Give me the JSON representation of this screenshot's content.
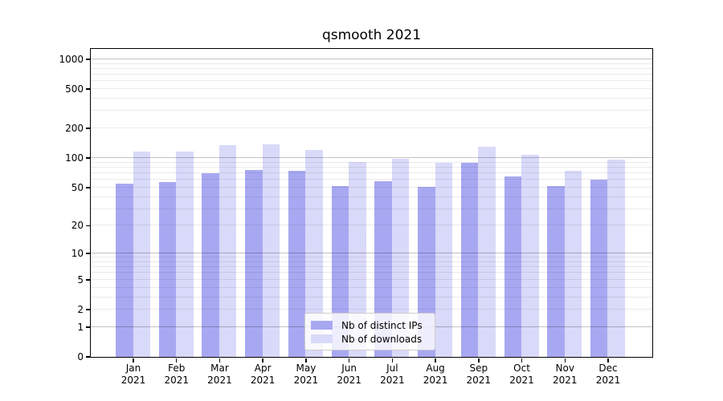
{
  "chart_data": {
    "type": "bar",
    "title": "qsmooth 2021",
    "categories": [
      "Jan 2021",
      "Feb 2021",
      "Mar 2021",
      "Apr 2021",
      "May 2021",
      "Jun 2021",
      "Jul 2021",
      "Aug 2021",
      "Sep 2021",
      "Oct 2021",
      "Nov 2021",
      "Dec 2021"
    ],
    "series": [
      {
        "name": "Nb of distinct IPs",
        "color": "#a8a8f2",
        "values": [
          54,
          56,
          69,
          75,
          74,
          51,
          57,
          50,
          89,
          65,
          51,
          60
        ]
      },
      {
        "name": "Nb of downloads",
        "color": "#d9d9f9",
        "values": [
          116,
          116,
          135,
          136,
          120,
          91,
          98,
          89,
          130,
          107,
          73,
          96
        ]
      }
    ],
    "xlabel": "",
    "ylabel": "",
    "y_scale": "log1p",
    "ylim": [
      0,
      1273
    ],
    "y_ticks": [
      0,
      1,
      2,
      5,
      10,
      20,
      50,
      100,
      200,
      500,
      1000
    ],
    "major_gridlines": [
      1,
      10,
      100,
      1000
    ],
    "minor_gridlines": [
      2,
      3,
      4,
      5,
      6,
      7,
      8,
      9,
      20,
      30,
      40,
      50,
      60,
      70,
      80,
      90,
      200,
      300,
      400,
      500,
      600,
      700,
      800,
      900
    ],
    "grid": true,
    "legend_position": "lower center",
    "colors": {
      "axis": "#000000",
      "background": "#ffffff",
      "major_grid": "rgba(0,0,0,0.24)",
      "minor_grid": "rgba(0,0,0,0.08)",
      "legend_border": "#cccccc"
    }
  }
}
